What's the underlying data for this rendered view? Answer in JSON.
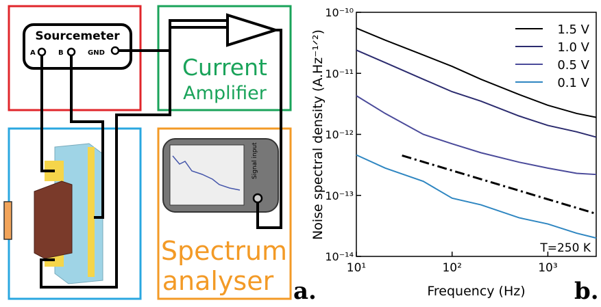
{
  "diagram": {
    "sourcemeter": {
      "title": "Sourcemeter",
      "terminals": [
        "A",
        "B",
        "GND"
      ]
    },
    "amplifier": {
      "lines": [
        "Current",
        "Amplifier"
      ]
    },
    "analyser": {
      "lines": [
        "Spectrum",
        "analyser"
      ],
      "input": "Signal input"
    },
    "panel_a": "a.",
    "panel_b": "b."
  },
  "chart_data": {
    "type": "line",
    "xlabel": "Frequency (Hz)",
    "ylabel": "Noise spectral density (A.Hz⁻¹ᐟ²)",
    "log_x": true,
    "log_y": true,
    "xlim": [
      10,
      3200
    ],
    "ylim": [
      1e-14,
      1e-10
    ],
    "xticks": [
      {
        "value": 10,
        "label": "10¹"
      },
      {
        "value": 100,
        "label": "10²"
      },
      {
        "value": 1000,
        "label": "10³"
      }
    ],
    "yticks": [
      {
        "value": 1e-14,
        "label": "10⁻¹⁴"
      },
      {
        "value": 1e-13,
        "label": "10⁻¹³"
      },
      {
        "value": 1e-12,
        "label": "10⁻¹²"
      },
      {
        "value": 1e-11,
        "label": "10⁻¹¹"
      },
      {
        "value": 1e-10,
        "label": "10⁻¹⁰"
      }
    ],
    "x": [
      10,
      20,
      50,
      100,
      200,
      500,
      1000,
      2000,
      3200
    ],
    "series": [
      {
        "name": "1.5 V",
        "color": "#000000",
        "values": [
          5.5e-11,
          3.5e-11,
          2e-11,
          1.3e-11,
          8e-12,
          4.5e-12,
          3e-12,
          2.2e-12,
          1.9e-12
        ]
      },
      {
        "name": "1.0 V",
        "color": "#2b2b6e",
        "values": [
          2.4e-11,
          1.5e-11,
          8e-12,
          5e-12,
          3.5e-12,
          2e-12,
          1.4e-12,
          1.1e-12,
          9e-13
        ]
      },
      {
        "name": "0.5 V",
        "color": "#4a4a9a",
        "values": [
          4.3e-12,
          2.2e-12,
          1e-12,
          7e-13,
          5e-13,
          3.5e-13,
          2.8e-13,
          2.3e-13,
          2.2e-13
        ]
      },
      {
        "name": "0.1 V",
        "color": "#2e86c1",
        "values": [
          4.6e-13,
          2.8e-13,
          1.7e-13,
          9e-14,
          7e-14,
          4.3e-14,
          3.4e-14,
          2.4e-14,
          2e-14
        ]
      }
    ],
    "reference_line": {
      "x": [
        30,
        3200
      ],
      "values": [
        4.5e-13,
        5e-14
      ],
      "color": "#000000"
    },
    "annotation": "T=250 K",
    "legend": "top-right"
  }
}
